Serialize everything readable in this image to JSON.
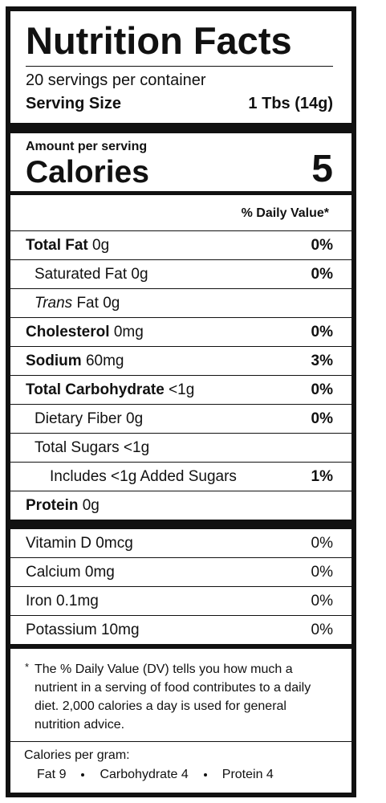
{
  "header": {
    "title": "Nutrition Facts",
    "servings": "20 servings per container",
    "serving_size_label": "Serving Size",
    "serving_size_value": "1 Tbs (14g)"
  },
  "calories": {
    "amount_label": "Amount per serving",
    "label": "Calories",
    "value": "5"
  },
  "dv_header": "% Daily Value*",
  "nutrients": [
    {
      "name": "Total Fat",
      "amount": "0g",
      "dv": "0%",
      "bold": true,
      "indent": 0
    },
    {
      "name": "Saturated Fat",
      "amount": "0g",
      "dv": "0%",
      "bold": false,
      "indent": 1
    },
    {
      "prefix": "Trans",
      "name": "Fat",
      "amount": "0g",
      "bold": false,
      "indent": 1
    },
    {
      "name": "Cholesterol",
      "amount": "0mg",
      "dv": "0%",
      "bold": true,
      "indent": 0
    },
    {
      "name": "Sodium",
      "amount": "60mg",
      "dv": "3%",
      "bold": true,
      "indent": 0
    },
    {
      "name": "Total Carbohydrate",
      "amount": "<1g",
      "dv": "0%",
      "bold": true,
      "indent": 0
    },
    {
      "name": "Dietary Fiber",
      "amount": "0g",
      "dv": "0%",
      "bold": false,
      "indent": 1
    },
    {
      "name": "Total Sugars",
      "amount": "<1g",
      "bold": false,
      "indent": 1
    },
    {
      "name": "Includes <1g Added Sugars",
      "dv": "1%",
      "bold": false,
      "indent": 2
    },
    {
      "name": "Protein",
      "amount": "0g",
      "bold": true,
      "indent": 0
    }
  ],
  "vitamins": [
    {
      "name": "Vitamin D",
      "amount": "0mcg",
      "dv": "0%"
    },
    {
      "name": "Calcium",
      "amount": "0mg",
      "dv": "0%"
    },
    {
      "name": "Iron",
      "amount": "0.1mg",
      "dv": "0%"
    },
    {
      "name": "Potassium",
      "amount": "10mg",
      "dv": "0%"
    }
  ],
  "footnote": {
    "marker": "*",
    "text": "The % Daily Value (DV) tells you how much a nutrient in a serving of food contributes to a daily diet. 2,000 calories a day is used for general nutrition advice."
  },
  "calories_per_gram": {
    "label": "Calories per gram:",
    "items": [
      "Fat 9",
      "Carbohydrate 4",
      "Protein 4"
    ]
  }
}
